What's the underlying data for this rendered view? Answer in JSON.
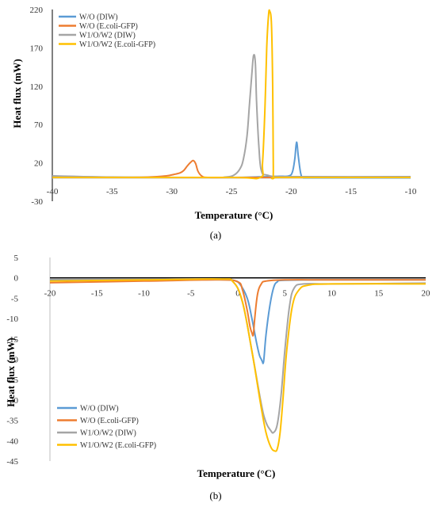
{
  "chart_data": [
    {
      "type": "line",
      "panel_label": "(a)",
      "xlabel": "Temperature (°C)",
      "ylabel": "Heat flux (mW)",
      "xlim": [
        -40,
        -10
      ],
      "ylim": [
        -30,
        220
      ],
      "xticks": [
        -40,
        -35,
        -30,
        -25,
        -20,
        -15,
        -10
      ],
      "yticks": [
        220,
        170,
        120,
        70,
        20,
        -30
      ],
      "grid": false,
      "legend_position": "top-left",
      "series": [
        {
          "name": "W/O (DIW)",
          "color": "#5B9BD5",
          "x": [
            -40,
            -30,
            -25,
            -23,
            -22,
            -21,
            -20.2,
            -19.9,
            -19.7,
            -19.55,
            -19.4,
            -19.2,
            -19.0,
            -18.5,
            -15,
            -10
          ],
          "y": [
            1,
            1,
            1,
            1.5,
            2,
            2.5,
            3,
            8,
            25,
            47,
            28,
            6,
            1,
            0.5,
            0.5,
            0.5
          ]
        },
        {
          "name": "W/O (E.coli-GFP)",
          "color": "#ED7D31",
          "x": [
            -40,
            -35,
            -32,
            -30.5,
            -29.8,
            -29.3,
            -29.0,
            -28.7,
            -28.4,
            -28.2,
            -28.0,
            -27.8,
            -27.5,
            -27,
            -25,
            -15,
            -10
          ],
          "y": [
            2,
            1,
            1.5,
            3,
            5,
            7,
            10,
            16,
            21,
            23,
            19,
            9,
            3,
            1,
            1,
            1,
            1
          ]
        },
        {
          "name": "W1/O/W2 (DIW)",
          "color": "#A5A5A5",
          "x": [
            -40,
            -35,
            -27,
            -25.5,
            -24.8,
            -24.3,
            -24.0,
            -23.7,
            -23.5,
            -23.3,
            -23.15,
            -23.0,
            -22.9,
            -22.7,
            -22.5,
            -22,
            -20,
            -10
          ],
          "y": [
            3,
            1.5,
            1,
            1.5,
            4,
            12,
            25,
            55,
            95,
            135,
            160,
            150,
            100,
            40,
            10,
            4,
            2,
            2
          ]
        },
        {
          "name": "W1/O/W2 (E.coli-GFP)",
          "color": "#FFC000",
          "x": [
            -40,
            -35,
            -25,
            -22.6,
            -22.4,
            -22.2,
            -22.05,
            -21.9,
            -21.8,
            -21.65,
            -21.55,
            -21.5,
            -21.45,
            -21,
            -15,
            -10
          ],
          "y": [
            1,
            1,
            1,
            1,
            20,
            90,
            170,
            212,
            218,
            200,
            120,
            20,
            1,
            1,
            1,
            1
          ]
        }
      ]
    },
    {
      "type": "line",
      "panel_label": "(b)",
      "xlabel": "Temperature (°C)",
      "ylabel": "Heat flux (mW)",
      "xlim": [
        -20,
        20
      ],
      "ylim": [
        -45,
        5
      ],
      "xticks": [
        -20,
        -15,
        -10,
        -5,
        0,
        5,
        10,
        15,
        20
      ],
      "yticks": [
        5,
        0,
        -5,
        -10,
        -15,
        -20,
        -25,
        -30,
        -35,
        -40,
        -45
      ],
      "grid": false,
      "legend_position": "bottom-left",
      "series": [
        {
          "name": "W/O (DIW)",
          "color": "#5B9BD5",
          "x": [
            -20,
            -10,
            -2,
            -0.5,
            0.2,
            1.0,
            1.5,
            2.0,
            2.3,
            2.5,
            2.6,
            2.75,
            3.0,
            3.4,
            3.8,
            4.2,
            5,
            10,
            20
          ],
          "y": [
            -0.5,
            -0.4,
            -0.3,
            -0.6,
            -1.5,
            -5,
            -10,
            -16,
            -19,
            -20,
            -20.5,
            -20.5,
            -14,
            -7,
            -2.5,
            -1,
            -0.6,
            -0.5,
            -0.5
          ]
        },
        {
          "name": "W/O (E.coli-GFP)",
          "color": "#ED7D31",
          "x": [
            -20,
            -10,
            -2,
            0,
            0.5,
            1.0,
            1.3,
            1.5,
            1.65,
            1.8,
            2.1,
            2.5,
            3,
            5,
            10,
            20
          ],
          "y": [
            -1.2,
            -0.8,
            -0.5,
            -1,
            -3,
            -8,
            -12,
            -13.5,
            -14,
            -10,
            -4,
            -1.5,
            -0.8,
            -0.5,
            -0.5,
            -0.5
          ]
        },
        {
          "name": "W1/O/W2 (DIW)",
          "color": "#A5A5A5",
          "x": [
            -20,
            -10,
            -2,
            -0.5,
            0.5,
            1.5,
            2.5,
            3.0,
            3.5,
            3.8,
            4.2,
            4.6,
            5.0,
            5.5,
            6,
            7,
            10,
            20
          ],
          "y": [
            -0.3,
            -0.3,
            -0.3,
            -1,
            -6,
            -18,
            -31,
            -35.5,
            -37.5,
            -38,
            -36,
            -29,
            -18,
            -7,
            -2.5,
            -1.5,
            -1.5,
            -1.3
          ]
        },
        {
          "name": "W1/O/W2 (E.coli-GFP)",
          "color": "#FFC000",
          "x": [
            -20,
            -10,
            -2,
            -0.5,
            0.5,
            1.5,
            2.5,
            3.0,
            3.5,
            3.9,
            4.2,
            4.5,
            4.8,
            5.2,
            5.8,
            6.5,
            7.5,
            10,
            20
          ],
          "y": [
            -0.8,
            -0.5,
            -0.3,
            -1,
            -6,
            -18,
            -32,
            -38,
            -41.5,
            -42.5,
            -42,
            -38,
            -30,
            -18,
            -7,
            -3,
            -1.8,
            -1.5,
            -1.5
          ]
        }
      ]
    }
  ]
}
